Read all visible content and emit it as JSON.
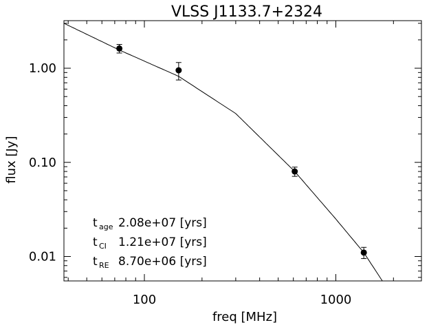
{
  "chart_data": {
    "type": "scatter",
    "title": "VLSS J1133.7+2324",
    "xlabel": "freq [MHz]",
    "ylabel": "flux [Jy]",
    "xscale": "log",
    "yscale": "log",
    "xlim": [
      38,
      2800
    ],
    "ylim": [
      0.0055,
      3.2
    ],
    "xticks": [
      100,
      1000
    ],
    "xtick_labels": [
      "100",
      "1000"
    ],
    "yticks": [
      0.01,
      0.1,
      1.0
    ],
    "ytick_labels": [
      "0.01",
      "0.10",
      "1.00"
    ],
    "points": [
      {
        "x": 74,
        "y": 1.62,
        "err": 0.17
      },
      {
        "x": 151,
        "y": 0.95,
        "err": 0.2
      },
      {
        "x": 610,
        "y": 0.08,
        "err": 0.009
      },
      {
        "x": 1400,
        "y": 0.011,
        "err": 0.0015
      }
    ],
    "fit": {
      "x": [
        38,
        74,
        151,
        300,
        610,
        1000,
        1400,
        1750
      ],
      "y": [
        3.0,
        1.56,
        0.82,
        0.33,
        0.08,
        0.025,
        0.011,
        0.0055
      ]
    },
    "annotations": [
      {
        "sym": "t",
        "sub": "age",
        "text": "2.08e+07 [yrs]"
      },
      {
        "sym": "t",
        "sub": "CI",
        "text": "1.21e+07 [yrs]"
      },
      {
        "sym": "t",
        "sub": "RE",
        "text": "8.70e+06 [yrs]"
      }
    ],
    "grid": false,
    "legend": "none"
  }
}
